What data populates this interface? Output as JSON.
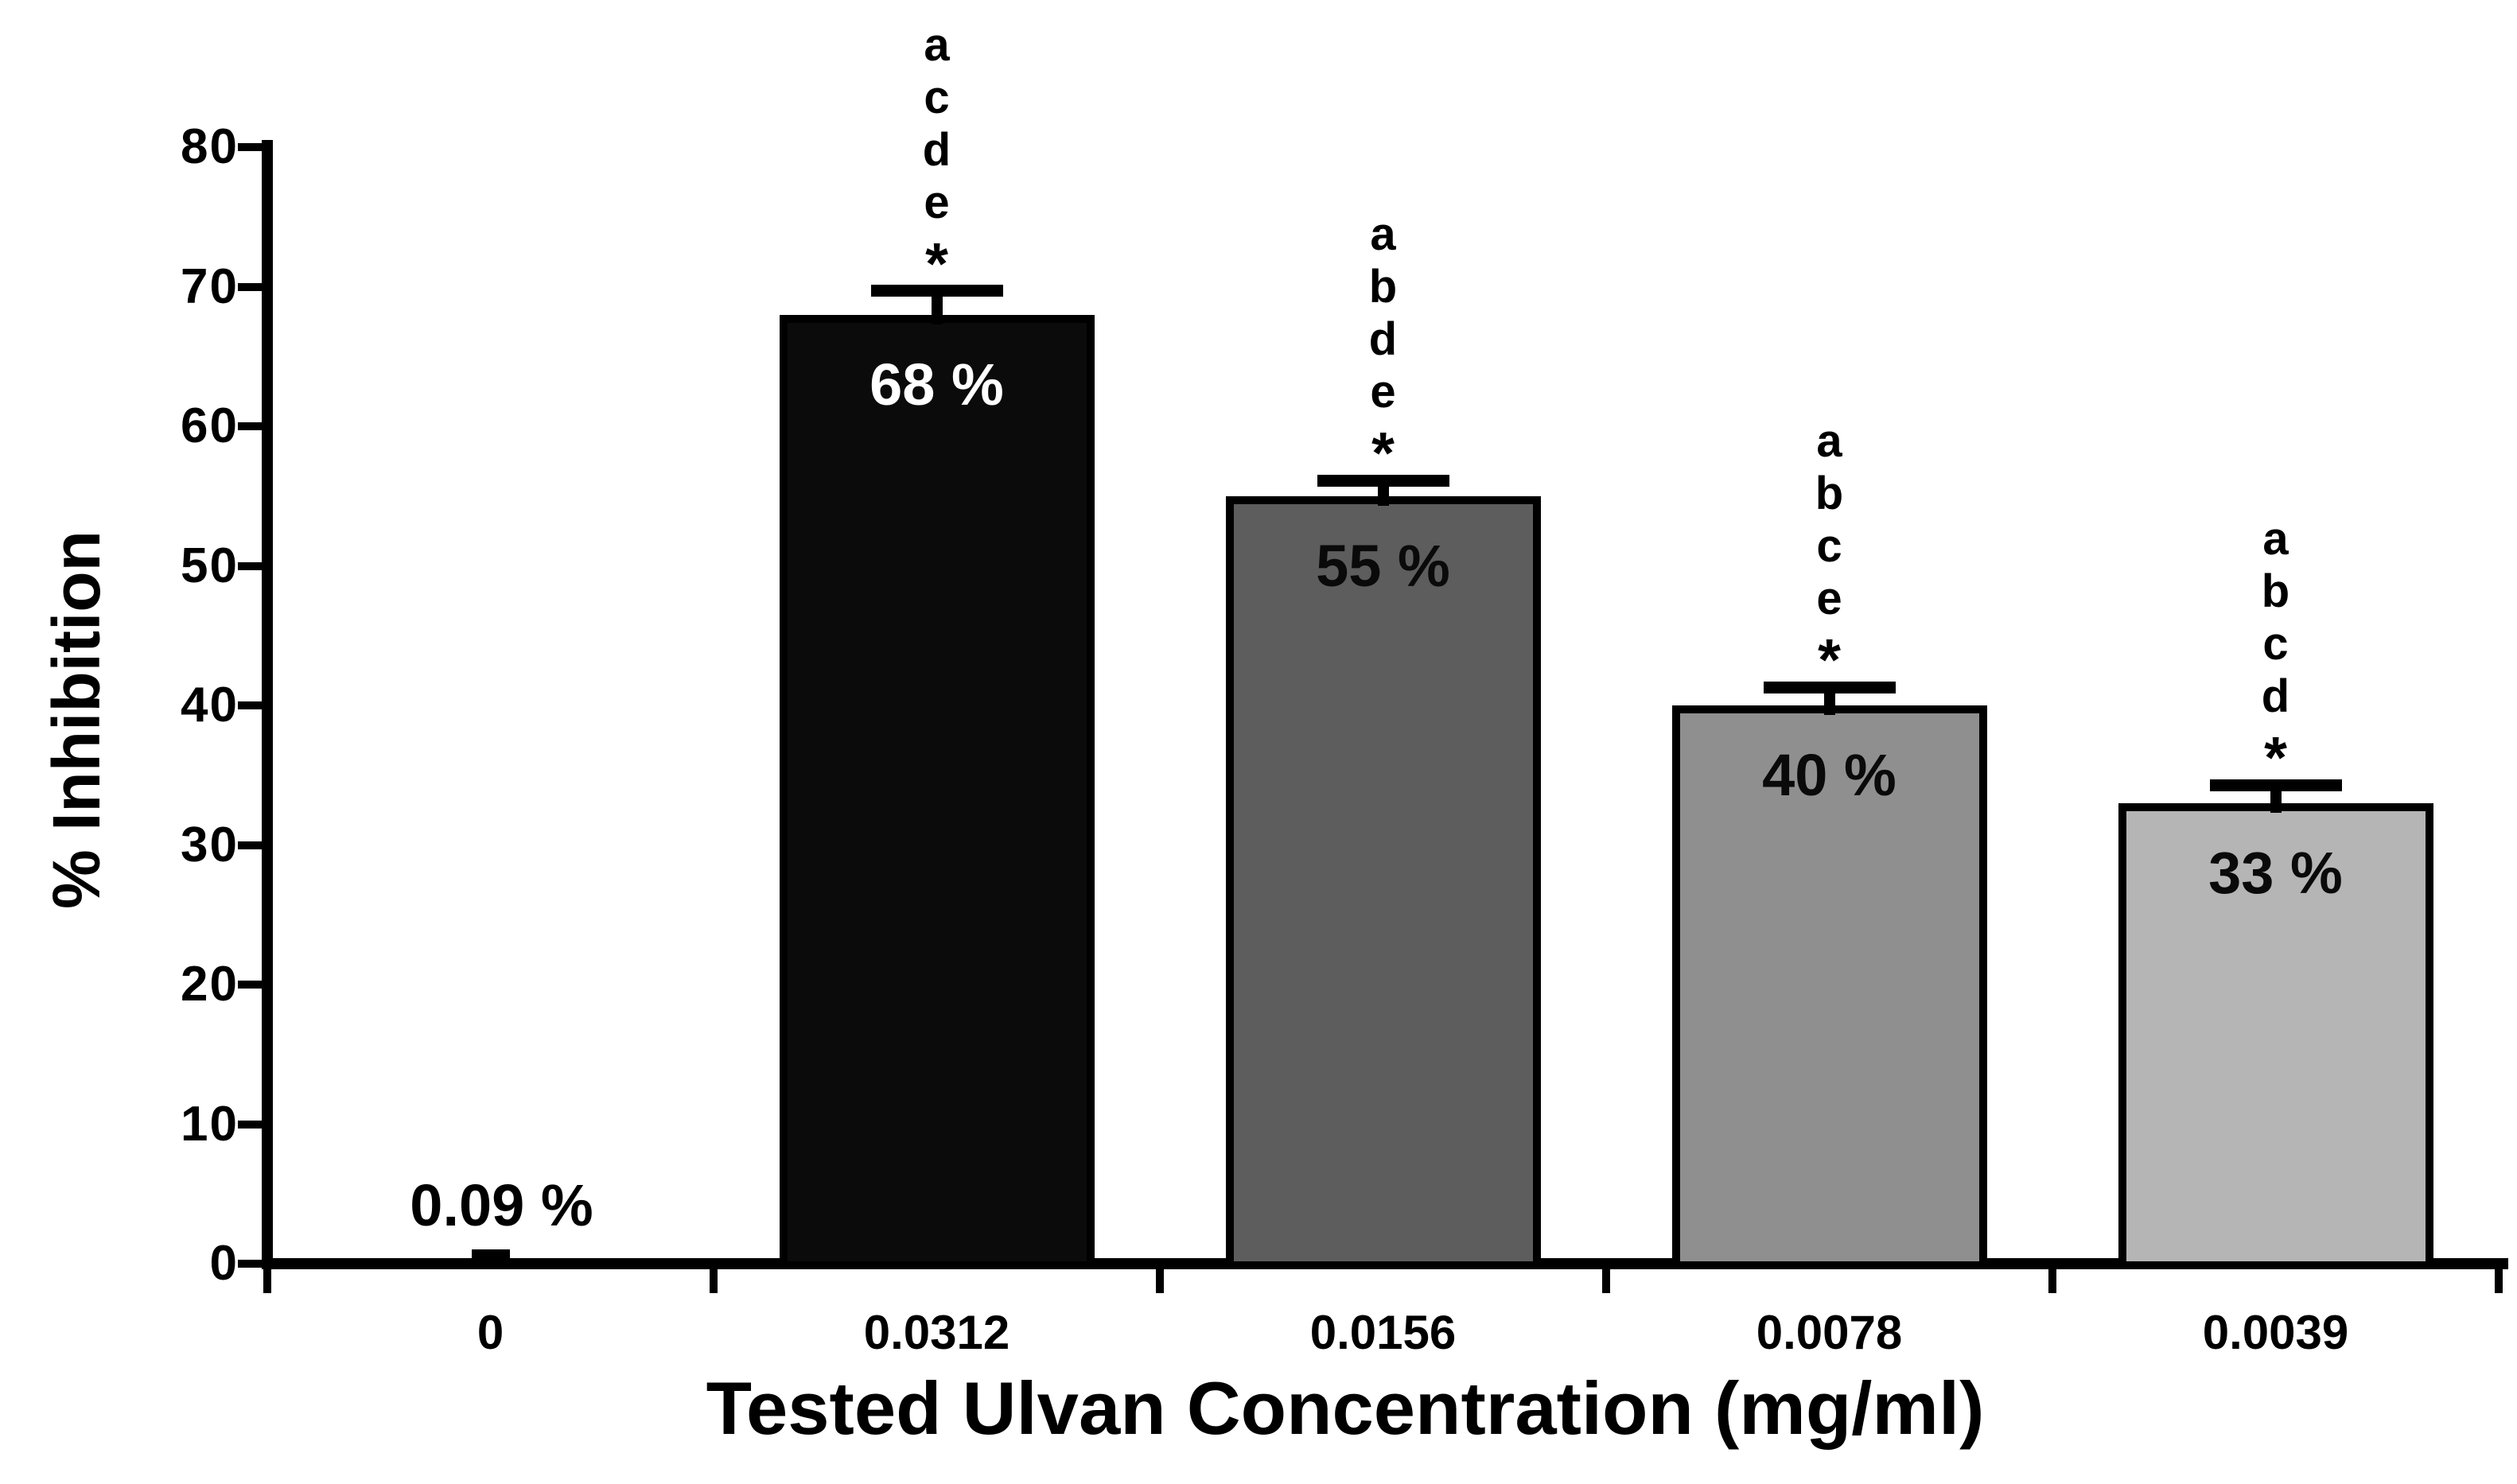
{
  "figure": {
    "background": "#ffffff",
    "axis_color": "#000000"
  },
  "chart_data": {
    "type": "bar",
    "title": "",
    "xlabel": "Tested Ulvan Concentration (mg/ml)",
    "ylabel": "% Inhibition",
    "ylim": [
      0,
      80
    ],
    "grid": false,
    "legend": null,
    "yticks": [
      "0",
      "10",
      "20",
      "30",
      "40",
      "50",
      "60",
      "70",
      "80"
    ],
    "categories": [
      "0",
      "0.0312",
      "0.0156",
      "0.0078",
      "0.0039"
    ],
    "values": [
      0.09,
      68,
      55,
      40,
      33
    ],
    "value_labels": [
      "0.09 %",
      "68 %",
      "55 %",
      "40 %",
      "33 %"
    ],
    "error_upper": [
      0,
      1.7,
      1.1,
      1.3,
      1.3
    ],
    "significance_letters": [
      [],
      [
        "a",
        "c",
        "d",
        "e"
      ],
      [
        "a",
        "b",
        "d",
        "e"
      ],
      [
        "a",
        "b",
        "c",
        "e"
      ],
      [
        "a",
        "b",
        "c",
        "d"
      ]
    ],
    "significance_marker": "*",
    "bar_colors": [
      "#000000",
      "#0b0b0b",
      "#5d5d5d",
      "#8f8f8f",
      "#b5b5b5"
    ],
    "value_label_colors": [
      "#000000",
      "#ffffff",
      "#0a0a0a",
      "#0a0a0a",
      "#0a0a0a"
    ]
  }
}
